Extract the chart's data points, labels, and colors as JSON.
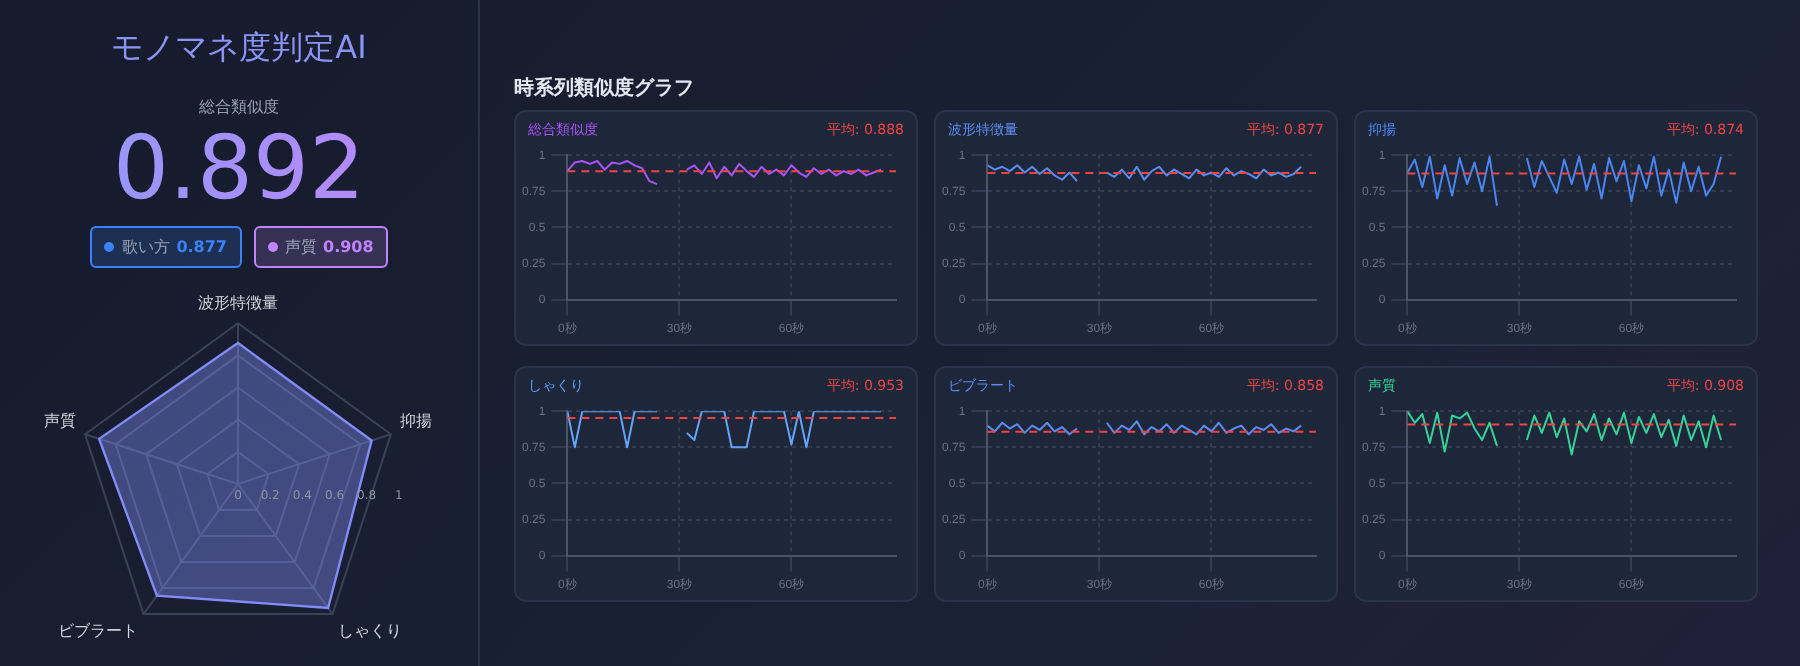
{
  "chart_data": [
    {
      "type": "other",
      "title": "モノマネ度判定AI",
      "subtitle": "総合類似度",
      "annotations": [
        "0.892"
      ],
      "categories": [
        "歌い方",
        "声質"
      ],
      "values": [
        0.877,
        0.908
      ],
      "colors": [
        "#3b82f6",
        "#c084fc"
      ],
      "data_labels": true
    },
    {
      "type": "radar",
      "categories": [
        "波形特徴量",
        "抑揚",
        "しゃくり",
        "ビブラート",
        "声質"
      ],
      "ylim": [
        0,
        1
      ],
      "yticks": [
        0,
        0.2,
        0.4,
        0.6,
        0.8,
        1
      ],
      "grid": true,
      "series": [
        {
          "color": "#818cf8",
          "values": [
            0.877,
            0.874,
            0.953,
            0.858,
            0.908
          ]
        }
      ]
    },
    {
      "type": "other",
      "title": "時系列類似度グラフ"
    },
    {
      "type": "line",
      "title": "総合類似度",
      "xlim": [
        0,
        88
      ],
      "xticks": [
        {
          "value": 0,
          "label": "0秒"
        },
        {
          "value": 30,
          "label": "30秒"
        },
        {
          "value": 60,
          "label": "60秒"
        }
      ],
      "ylim": [
        0,
        1
      ],
      "yticks": [
        0,
        0.25,
        0.5,
        0.75,
        1
      ],
      "grid": true,
      "marker": "none",
      "line_style": "solid",
      "x": [
        0,
        2,
        4,
        6,
        8,
        10,
        12,
        14,
        16,
        18,
        20,
        22,
        24,
        28,
        32,
        34,
        36,
        38,
        40,
        42,
        44,
        46,
        48,
        50,
        52,
        54,
        56,
        58,
        60,
        62,
        64,
        66,
        68,
        70,
        72,
        74,
        76,
        78,
        80,
        82,
        84
      ],
      "ref_lines": [
        {
          "axis": "y",
          "value": 0.888,
          "label": "平均: 0.888",
          "color": "#ef4444",
          "line_style": "dashed"
        }
      ],
      "series": [
        {
          "color": "#a855f7",
          "values": [
            0.89,
            0.95,
            0.96,
            0.94,
            0.96,
            0.9,
            0.95,
            0.94,
            0.96,
            0.93,
            0.91,
            0.82,
            0.8,
            null,
            0.9,
            0.93,
            0.87,
            0.95,
            0.84,
            0.92,
            0.86,
            0.94,
            0.89,
            0.85,
            0.92,
            0.87,
            0.9,
            0.86,
            0.93,
            0.88,
            0.85,
            0.91,
            0.87,
            0.9,
            0.86,
            0.89,
            0.87,
            0.9,
            0.86,
            0.88,
            0.9
          ]
        }
      ]
    },
    {
      "type": "line",
      "title": "波形特徴量",
      "xlim": [
        0,
        88
      ],
      "xticks": [
        {
          "value": 0,
          "label": "0秒"
        },
        {
          "value": 30,
          "label": "30秒"
        },
        {
          "value": 60,
          "label": "60秒"
        }
      ],
      "ylim": [
        0,
        1
      ],
      "yticks": [
        0,
        0.25,
        0.5,
        0.75,
        1
      ],
      "grid": true,
      "marker": "none",
      "line_style": "solid",
      "x": [
        0,
        2,
        4,
        6,
        8,
        10,
        12,
        14,
        16,
        18,
        20,
        22,
        24,
        28,
        32,
        34,
        36,
        38,
        40,
        42,
        44,
        46,
        48,
        50,
        52,
        54,
        56,
        58,
        60,
        62,
        64,
        66,
        68,
        70,
        72,
        74,
        76,
        78,
        80,
        82,
        84
      ],
      "ref_lines": [
        {
          "axis": "y",
          "value": 0.877,
          "label": "平均: 0.877",
          "color": "#ef4444",
          "line_style": "dashed"
        }
      ],
      "series": [
        {
          "color": "#5b8def",
          "values": [
            0.93,
            0.9,
            0.92,
            0.89,
            0.93,
            0.88,
            0.92,
            0.87,
            0.91,
            0.86,
            0.83,
            0.88,
            0.82,
            null,
            0.88,
            0.85,
            0.9,
            0.84,
            0.92,
            0.83,
            0.89,
            0.92,
            0.86,
            0.9,
            0.87,
            0.84,
            0.9,
            0.86,
            0.88,
            0.85,
            0.91,
            0.86,
            0.89,
            0.87,
            0.84,
            0.9,
            0.86,
            0.88,
            0.85,
            0.87,
            0.92
          ]
        }
      ]
    },
    {
      "type": "line",
      "title": "抑揚",
      "xlim": [
        0,
        88
      ],
      "xticks": [
        {
          "value": 0,
          "label": "0秒"
        },
        {
          "value": 30,
          "label": "30秒"
        },
        {
          "value": 60,
          "label": "60秒"
        }
      ],
      "ylim": [
        0,
        1
      ],
      "yticks": [
        0,
        0.25,
        0.5,
        0.75,
        1
      ],
      "grid": true,
      "marker": "none",
      "line_style": "solid",
      "x": [
        0,
        2,
        4,
        6,
        8,
        10,
        12,
        14,
        16,
        18,
        20,
        22,
        24,
        28,
        32,
        34,
        36,
        38,
        40,
        42,
        44,
        46,
        48,
        50,
        52,
        54,
        56,
        58,
        60,
        62,
        64,
        66,
        68,
        70,
        72,
        74,
        76,
        78,
        80,
        82,
        84
      ],
      "ref_lines": [
        {
          "axis": "y",
          "value": 0.874,
          "label": "平均: 0.874",
          "color": "#ef4444",
          "line_style": "dashed"
        }
      ],
      "series": [
        {
          "color": "#4a86f0",
          "values": [
            0.88,
            0.97,
            0.78,
            0.99,
            0.7,
            0.93,
            0.72,
            0.98,
            0.8,
            0.95,
            0.75,
            0.99,
            0.65,
            null,
            0.98,
            0.78,
            0.96,
            0.85,
            0.74,
            0.97,
            0.8,
            0.99,
            0.76,
            0.94,
            0.7,
            0.98,
            0.82,
            0.96,
            0.68,
            0.93,
            0.77,
            0.99,
            0.72,
            0.9,
            0.67,
            0.95,
            0.75,
            0.92,
            0.72,
            0.8,
            0.99
          ]
        }
      ]
    },
    {
      "type": "line",
      "title": "しゃくり",
      "xlim": [
        0,
        88
      ],
      "xticks": [
        {
          "value": 0,
          "label": "0秒"
        },
        {
          "value": 30,
          "label": "30秒"
        },
        {
          "value": 60,
          "label": "60秒"
        }
      ],
      "ylim": [
        0,
        1
      ],
      "yticks": [
        0,
        0.25,
        0.5,
        0.75,
        1
      ],
      "grid": true,
      "marker": "none",
      "line_style": "solid",
      "x": [
        0,
        2,
        4,
        6,
        8,
        10,
        12,
        14,
        16,
        18,
        20,
        22,
        24,
        28,
        32,
        34,
        36,
        38,
        40,
        42,
        44,
        46,
        48,
        50,
        52,
        54,
        56,
        58,
        60,
        62,
        64,
        66,
        68,
        70,
        72,
        74,
        76,
        78,
        80,
        82,
        84
      ],
      "ref_lines": [
        {
          "axis": "y",
          "value": 0.953,
          "label": "平均: 0.953",
          "color": "#ef4444",
          "line_style": "dashed"
        }
      ],
      "series": [
        {
          "color": "#60a5fa",
          "values": [
            1,
            0.75,
            1,
            1,
            1,
            1,
            1,
            1,
            0.75,
            1,
            1,
            1,
            1,
            null,
            0.85,
            0.8,
            1,
            1,
            1,
            1,
            0.75,
            0.75,
            0.75,
            1,
            1,
            1,
            1,
            1,
            0.77,
            1,
            0.75,
            1,
            1,
            1,
            1,
            1,
            1,
            1,
            1,
            1,
            1
          ]
        }
      ]
    },
    {
      "type": "line",
      "title": "ビブラート",
      "xlim": [
        0,
        88
      ],
      "xticks": [
        {
          "value": 0,
          "label": "0秒"
        },
        {
          "value": 30,
          "label": "30秒"
        },
        {
          "value": 60,
          "label": "60秒"
        }
      ],
      "ylim": [
        0,
        1
      ],
      "yticks": [
        0,
        0.25,
        0.5,
        0.75,
        1
      ],
      "grid": true,
      "marker": "none",
      "line_style": "solid",
      "x": [
        0,
        2,
        4,
        6,
        8,
        10,
        12,
        14,
        16,
        18,
        20,
        22,
        24,
        28,
        32,
        34,
        36,
        38,
        40,
        42,
        44,
        46,
        48,
        50,
        52,
        54,
        56,
        58,
        60,
        62,
        64,
        66,
        68,
        70,
        72,
        74,
        76,
        78,
        80,
        82,
        84
      ],
      "ref_lines": [
        {
          "axis": "y",
          "value": 0.858,
          "label": "平均: 0.858",
          "color": "#ef4444",
          "line_style": "dashed"
        }
      ],
      "series": [
        {
          "color": "#5b8def",
          "values": [
            0.9,
            0.86,
            0.92,
            0.88,
            0.91,
            0.85,
            0.9,
            0.87,
            0.92,
            0.86,
            0.89,
            0.84,
            0.88,
            null,
            0.92,
            0.85,
            0.9,
            0.87,
            0.93,
            0.84,
            0.89,
            0.86,
            0.91,
            0.85,
            0.9,
            0.87,
            0.84,
            0.9,
            0.86,
            0.92,
            0.85,
            0.88,
            0.9,
            0.84,
            0.89,
            0.87,
            0.91,
            0.85,
            0.88,
            0.86,
            0.9
          ]
        }
      ]
    },
    {
      "type": "line",
      "title": "声質",
      "xlim": [
        0,
        88
      ],
      "xticks": [
        {
          "value": 0,
          "label": "0秒"
        },
        {
          "value": 30,
          "label": "30秒"
        },
        {
          "value": 60,
          "label": "60秒"
        }
      ],
      "ylim": [
        0,
        1
      ],
      "yticks": [
        0,
        0.25,
        0.5,
        0.75,
        1
      ],
      "grid": true,
      "marker": "none",
      "line_style": "solid",
      "x": [
        0,
        2,
        4,
        6,
        8,
        10,
        12,
        14,
        16,
        18,
        20,
        22,
        24,
        28,
        32,
        34,
        36,
        38,
        40,
        42,
        44,
        46,
        48,
        50,
        52,
        54,
        56,
        58,
        60,
        62,
        64,
        66,
        68,
        70,
        72,
        74,
        76,
        78,
        80,
        82,
        84
      ],
      "ref_lines": [
        {
          "axis": "y",
          "value": 0.908,
          "label": "平均: 0.908",
          "color": "#ef4444",
          "line_style": "dashed"
        }
      ],
      "series": [
        {
          "color": "#34d399",
          "values": [
            1,
            0.92,
            0.98,
            0.78,
            0.99,
            0.72,
            0.97,
            0.95,
            0.99,
            0.88,
            0.8,
            0.92,
            0.76,
            null,
            0.8,
            0.97,
            0.85,
            0.99,
            0.82,
            0.95,
            0.7,
            0.93,
            0.86,
            0.98,
            0.8,
            0.95,
            0.84,
            0.99,
            0.78,
            0.96,
            0.85,
            0.98,
            0.82,
            0.94,
            0.76,
            0.97,
            0.8,
            0.93,
            0.75,
            0.97,
            0.8
          ]
        }
      ]
    }
  ]
}
